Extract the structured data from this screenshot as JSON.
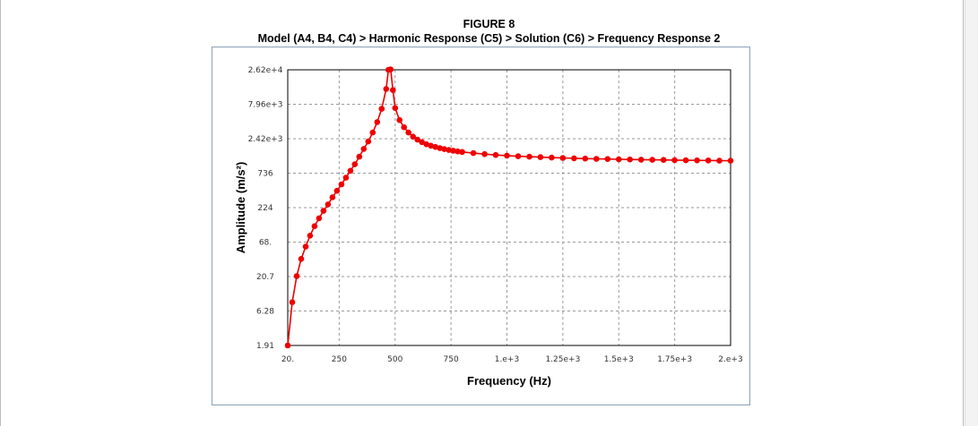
{
  "figure": {
    "label": "FIGURE 8",
    "title": "Model (A4, B4, C4) > Harmonic Response (C5) > Solution (C6) > Frequency Response 2"
  },
  "colors": {
    "series": "#ee0000",
    "grid": "#9a9a9a",
    "frame": "#8aa1b8"
  },
  "chart_data": {
    "type": "line",
    "xlabel": "Frequency (Hz)",
    "ylabel": "Amplitude (m/s²)",
    "xlim": [
      20,
      2000
    ],
    "ylim": [
      1.91,
      26200
    ],
    "y_scale": "log",
    "grid": true,
    "legend": "none",
    "x_ticks": [
      {
        "value": 20,
        "label": "20."
      },
      {
        "value": 250,
        "label": "250"
      },
      {
        "value": 500,
        "label": "500"
      },
      {
        "value": 750,
        "label": "750"
      },
      {
        "value": 1000,
        "label": "1.e+3"
      },
      {
        "value": 1250,
        "label": "1.25e+3"
      },
      {
        "value": 1500,
        "label": "1.5e+3"
      },
      {
        "value": 1750,
        "label": "1.75e+3"
      },
      {
        "value": 2000,
        "label": "2.e+3"
      }
    ],
    "y_ticks": [
      {
        "value": 1.91,
        "label": "1.91"
      },
      {
        "value": 6.28,
        "label": "6.28"
      },
      {
        "value": 20.7,
        "label": "20.7"
      },
      {
        "value": 68,
        "label": "68."
      },
      {
        "value": 224,
        "label": "224"
      },
      {
        "value": 736,
        "label": "736"
      },
      {
        "value": 2420,
        "label": "2.42e+3"
      },
      {
        "value": 7960,
        "label": "7.96e+3"
      },
      {
        "value": 26200,
        "label": "2.62e+4"
      }
    ],
    "series": [
      {
        "x": [
          20,
          40,
          60,
          80,
          100,
          120,
          140,
          160,
          180,
          200,
          220,
          240,
          260,
          280,
          300,
          320,
          340,
          360,
          380,
          400,
          420,
          440,
          460,
          470,
          480,
          490,
          500,
          520,
          540,
          560,
          580,
          600,
          620,
          640,
          660,
          680,
          700,
          720,
          740,
          760,
          780,
          800,
          850,
          900,
          950,
          1000,
          1050,
          1100,
          1150,
          1200,
          1250,
          1300,
          1350,
          1400,
          1450,
          1500,
          1550,
          1600,
          1650,
          1700,
          1750,
          1800,
          1850,
          1900,
          1950,
          2000
        ],
        "y": [
          1.91,
          8.5,
          21,
          38,
          58,
          85,
          118,
          155,
          200,
          250,
          320,
          400,
          500,
          630,
          800,
          1000,
          1300,
          1700,
          2200,
          3000,
          4300,
          6800,
          13500,
          26200,
          26500,
          13000,
          7000,
          4600,
          3600,
          3000,
          2600,
          2350,
          2150,
          2000,
          1900,
          1820,
          1750,
          1690,
          1640,
          1600,
          1560,
          1530,
          1470,
          1420,
          1380,
          1350,
          1320,
          1300,
          1280,
          1260,
          1245,
          1230,
          1218,
          1208,
          1198,
          1190,
          1182,
          1175,
          1168,
          1162,
          1156,
          1150,
          1145,
          1140,
          1136,
          1132
        ]
      }
    ]
  }
}
